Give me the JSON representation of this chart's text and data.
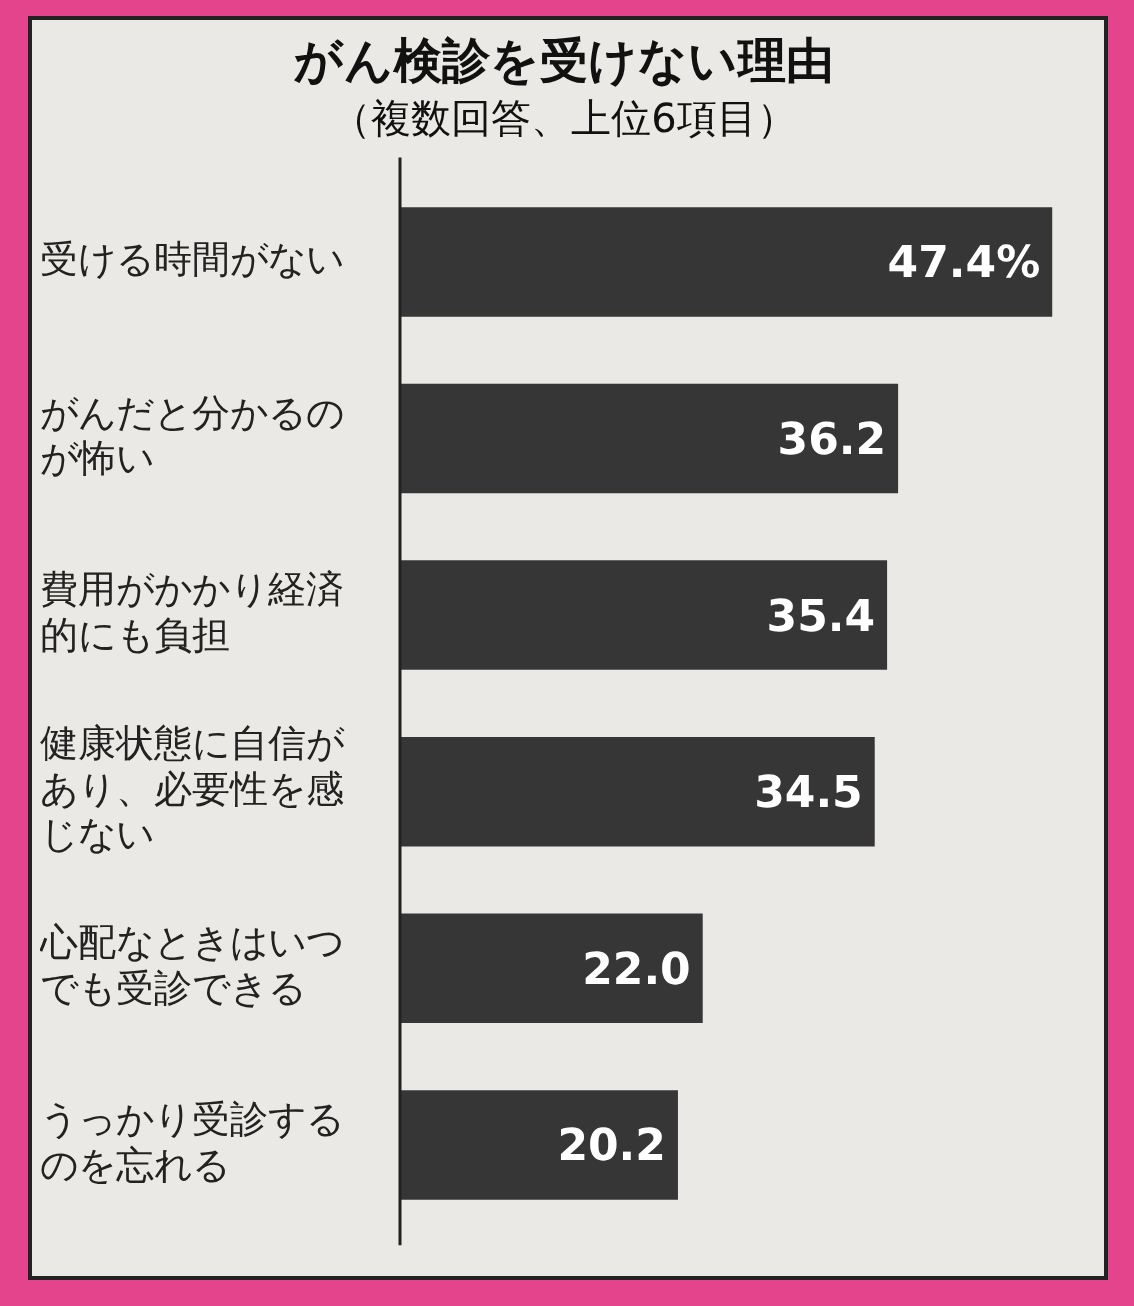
{
  "chart_data": {
    "type": "bar",
    "orientation": "horizontal",
    "title": "がん検診を受けない理由",
    "subtitle": "（複数回答、上位6項目）",
    "categories": [
      "受ける時間がない",
      "がんだと分かるのが怖い",
      "費用がかかり経済的にも負担",
      "健康状態に自信があり、必要性を感じない",
      "心配なときはいつでも受診できる",
      "うっかり受診するのを忘れる"
    ],
    "values": [
      47.4,
      36.2,
      35.4,
      34.5,
      22.0,
      20.2
    ],
    "value_labels": [
      "47.4%",
      "36.2",
      "35.4",
      "34.5",
      "22.0",
      "20.2"
    ],
    "color": "#363636",
    "tick_labels": "y",
    "legend": false
  }
}
